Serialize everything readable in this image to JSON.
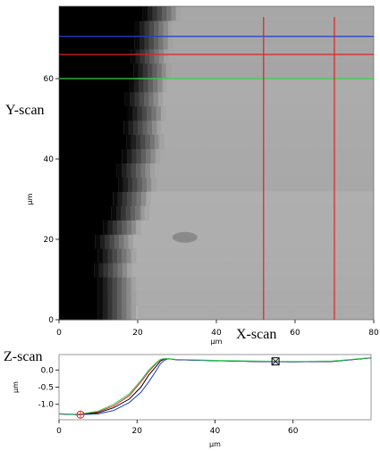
{
  "labels": {
    "y_scan": "Y-scan",
    "x_scan": "X-scan",
    "z_scan": "Z-scan"
  },
  "colors": {
    "blue": "#1f3fd1",
    "red": "#e02020",
    "green": "#33d04a",
    "black": "#000000"
  },
  "chart_data": [
    {
      "type": "heatmap",
      "title": "",
      "xlabel": "µm",
      "ylabel": "µm",
      "xlim": [
        0,
        80
      ],
      "ylim": [
        0,
        78
      ],
      "x_ticks": [
        "0",
        "20",
        "40",
        "60",
        "80"
      ],
      "y_ticks": [
        "0",
        "20",
        "40",
        "60"
      ],
      "x_tick_values": [
        0,
        20,
        40,
        60,
        80
      ],
      "y_tick_values": [
        0,
        20,
        40,
        60
      ],
      "overlay_lines": [
        {
          "orientation": "horizontal",
          "value": 70.5,
          "color": "blue"
        },
        {
          "orientation": "horizontal",
          "value": 66,
          "color": "red"
        },
        {
          "orientation": "horizontal",
          "value": 60,
          "color": "green"
        },
        {
          "orientation": "vertical",
          "value": 52,
          "color": "red"
        },
        {
          "orientation": "vertical",
          "value": 70,
          "color": "red"
        }
      ],
      "edge_profile": [
        {
          "y": 0,
          "x": 18
        },
        {
          "y": 10,
          "x": 16
        },
        {
          "y": 20,
          "x": 17
        },
        {
          "y": 30,
          "x": 21
        },
        {
          "y": 40,
          "x": 23
        },
        {
          "y": 50,
          "x": 24
        },
        {
          "y": 60,
          "x": 25
        },
        {
          "y": 70,
          "x": 26
        },
        {
          "y": 78,
          "x": 29
        }
      ]
    },
    {
      "type": "line",
      "title": "",
      "xlabel": "µm",
      "ylabel": "µm",
      "xlim": [
        0,
        80
      ],
      "ylim": [
        -1.45,
        0.45
      ],
      "x_ticks": [
        "0",
        "20",
        "40",
        "60"
      ],
      "y_ticks": [
        "0.0",
        "-0.5",
        "-1.0"
      ],
      "x_tick_values": [
        0,
        20,
        40,
        60
      ],
      "y_tick_values": [
        0.0,
        -0.5,
        -1.0
      ],
      "series": [
        {
          "color": "red",
          "x": [
            0,
            5,
            10,
            14,
            18,
            21,
            23,
            25,
            26,
            27,
            28,
            30,
            40,
            50,
            60,
            70,
            75,
            80
          ],
          "y": [
            -1.28,
            -1.3,
            -1.22,
            -1.05,
            -0.75,
            -0.35,
            -0.05,
            0.2,
            0.3,
            0.33,
            0.33,
            0.3,
            0.27,
            0.25,
            0.24,
            0.25,
            0.3,
            0.35
          ]
        },
        {
          "color": "black",
          "x": [
            0,
            5,
            10,
            14,
            18,
            21,
            23,
            25,
            26,
            27,
            28,
            30,
            40,
            50,
            60,
            70,
            75,
            80
          ],
          "y": [
            -1.28,
            -1.3,
            -1.25,
            -1.1,
            -0.85,
            -0.5,
            -0.15,
            0.12,
            0.26,
            0.32,
            0.33,
            0.3,
            0.27,
            0.25,
            0.24,
            0.25,
            0.3,
            0.35
          ]
        },
        {
          "color": "blue",
          "x": [
            0,
            5,
            10,
            14,
            18,
            21,
            23,
            25,
            26,
            27,
            28,
            30,
            40,
            50,
            60,
            70,
            75,
            80
          ],
          "y": [
            -1.28,
            -1.3,
            -1.28,
            -1.18,
            -0.95,
            -0.65,
            -0.35,
            0.0,
            0.18,
            0.28,
            0.33,
            0.3,
            0.27,
            0.25,
            0.24,
            0.25,
            0.3,
            0.35
          ]
        },
        {
          "color": "green",
          "x": [
            0,
            5,
            10,
            14,
            18,
            21,
            23,
            25,
            26,
            27,
            28,
            30,
            40,
            50,
            60,
            70,
            75,
            80
          ],
          "y": [
            -1.27,
            -1.29,
            -1.2,
            -1.0,
            -0.7,
            -0.3,
            0.0,
            0.22,
            0.31,
            0.33,
            0.33,
            0.31,
            0.28,
            0.26,
            0.25,
            0.26,
            0.31,
            0.36
          ]
        }
      ],
      "markers": [
        {
          "shape": "circle",
          "x": 5.5,
          "y": -1.3,
          "color": "red"
        },
        {
          "shape": "square",
          "x": 55.5,
          "y": 0.25,
          "color": "black"
        }
      ]
    }
  ]
}
